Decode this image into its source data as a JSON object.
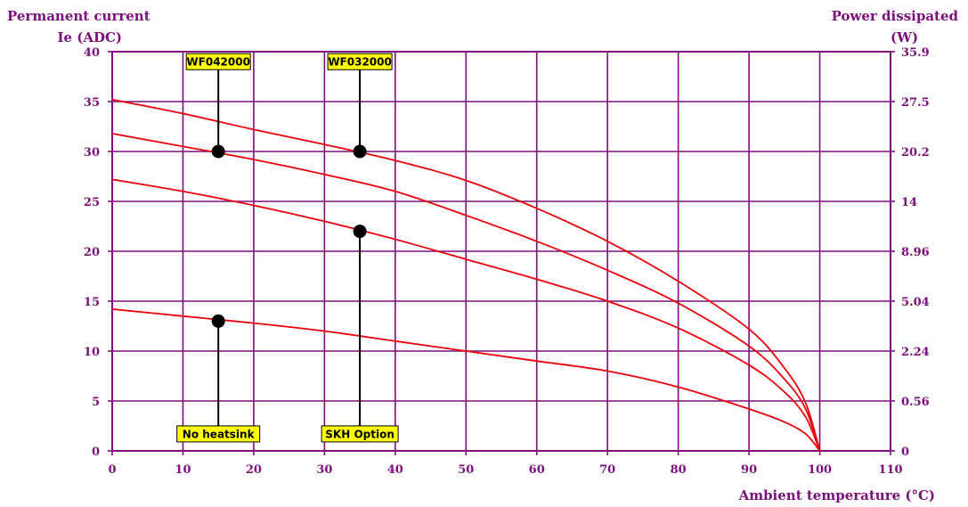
{
  "chart_data": {
    "type": "line",
    "ylabel_left": [
      "Permanent current",
      "Ie (ADC)"
    ],
    "ylabel_right": [
      "Power dissipated",
      "(W)"
    ],
    "xlabel": "Ambient temperature (°C)",
    "xlim": [
      0,
      110
    ],
    "ylim": [
      0,
      40
    ],
    "x_ticks": [
      "0",
      "10",
      "20",
      "30",
      "40",
      "50",
      "60",
      "70",
      "80",
      "90",
      "100",
      "110"
    ],
    "y_ticks": [
      "0",
      "5",
      "10",
      "15",
      "20",
      "25",
      "30",
      "35",
      "40"
    ],
    "y_right_ticks": [
      "0",
      "0.56",
      "2.24",
      "5.04",
      "8.96",
      "14",
      "20.2",
      "27.5",
      "35.9"
    ],
    "grid": true,
    "colors": {
      "axis": "#7b0f7b",
      "curve": "#e8000b",
      "label_box": "#ffff00"
    },
    "series": [
      {
        "x": [
          0,
          10,
          20,
          30,
          40,
          50,
          60,
          70,
          80,
          90,
          95,
          98,
          100
        ],
        "y": [
          35.2,
          33.8,
          32.2,
          30.7,
          29.1,
          27.1,
          24.3,
          21.0,
          17.0,
          12.2,
          8.3,
          4.8,
          0
        ]
      },
      {
        "x": [
          0,
          10,
          20,
          30,
          40,
          50,
          60,
          70,
          80,
          90,
          95,
          98,
          100
        ],
        "y": [
          31.8,
          30.5,
          29.2,
          27.7,
          26.0,
          23.6,
          21.0,
          18.1,
          14.8,
          10.5,
          7.2,
          4.2,
          0
        ]
      },
      {
        "x": [
          0,
          10,
          20,
          30,
          40,
          50,
          60,
          70,
          80,
          90,
          95,
          98,
          100
        ],
        "y": [
          27.2,
          26.0,
          24.6,
          23.0,
          21.2,
          19.2,
          17.2,
          15.0,
          12.3,
          8.6,
          5.9,
          3.4,
          0
        ]
      },
      {
        "x": [
          0,
          10,
          20,
          30,
          40,
          50,
          60,
          70,
          80,
          90,
          95,
          98,
          100
        ],
        "y": [
          14.2,
          13.5,
          12.8,
          12.0,
          11.0,
          10.0,
          9.0,
          8.0,
          6.4,
          4.2,
          2.9,
          1.7,
          0
        ]
      }
    ],
    "markers": [
      {
        "label": "WF042000",
        "x": 15,
        "y": 30,
        "box_y": 39.0
      },
      {
        "label": "WF032000",
        "x": 35,
        "y": 30,
        "box_y": 39.0
      },
      {
        "label": "No heatsink",
        "x": 15,
        "y": 13,
        "box_y": 1.7
      },
      {
        "label": "SKH Option",
        "x": 35,
        "y": 22,
        "box_y": 1.7
      }
    ]
  }
}
